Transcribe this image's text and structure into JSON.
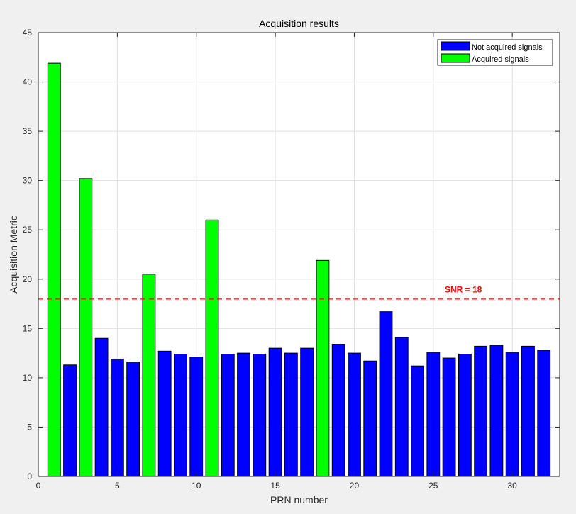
{
  "chart_data": {
    "type": "bar",
    "title": "Acquisition results",
    "xlabel": "PRN number",
    "ylabel": "Acquisition Metric",
    "xlim": [
      0,
      33
    ],
    "ylim": [
      0,
      45
    ],
    "xticks": [
      0,
      5,
      10,
      15,
      20,
      25,
      30
    ],
    "yticks": [
      0,
      5,
      10,
      15,
      20,
      25,
      30,
      35,
      40,
      45
    ],
    "grid": true,
    "legend_position": "top-right",
    "bar_width": 0.8,
    "series": [
      {
        "name": "Not acquired signals",
        "color": "#0000ff",
        "x": [
          2,
          4,
          5,
          6,
          8,
          9,
          10,
          12,
          13,
          14,
          15,
          16,
          17,
          19,
          20,
          21,
          22,
          23,
          24,
          25,
          26,
          27,
          28,
          29,
          30,
          31,
          32
        ],
        "values": [
          11.3,
          14.0,
          11.9,
          11.6,
          12.7,
          12.4,
          12.1,
          12.4,
          12.5,
          12.4,
          13.0,
          12.5,
          13.0,
          13.4,
          12.5,
          11.7,
          16.7,
          14.1,
          11.2,
          12.6,
          12.0,
          12.4,
          13.2,
          13.3,
          12.6,
          13.2,
          12.8
        ]
      },
      {
        "name": "Acquired signals",
        "color": "#00ff00",
        "x": [
          1,
          3,
          7,
          11,
          18
        ],
        "values": [
          41.9,
          30.2,
          20.5,
          26.0,
          21.9
        ]
      }
    ],
    "threshold": {
      "value": 18,
      "label": "SNR = 18",
      "color": "#ff0000",
      "style": "dashed"
    }
  }
}
